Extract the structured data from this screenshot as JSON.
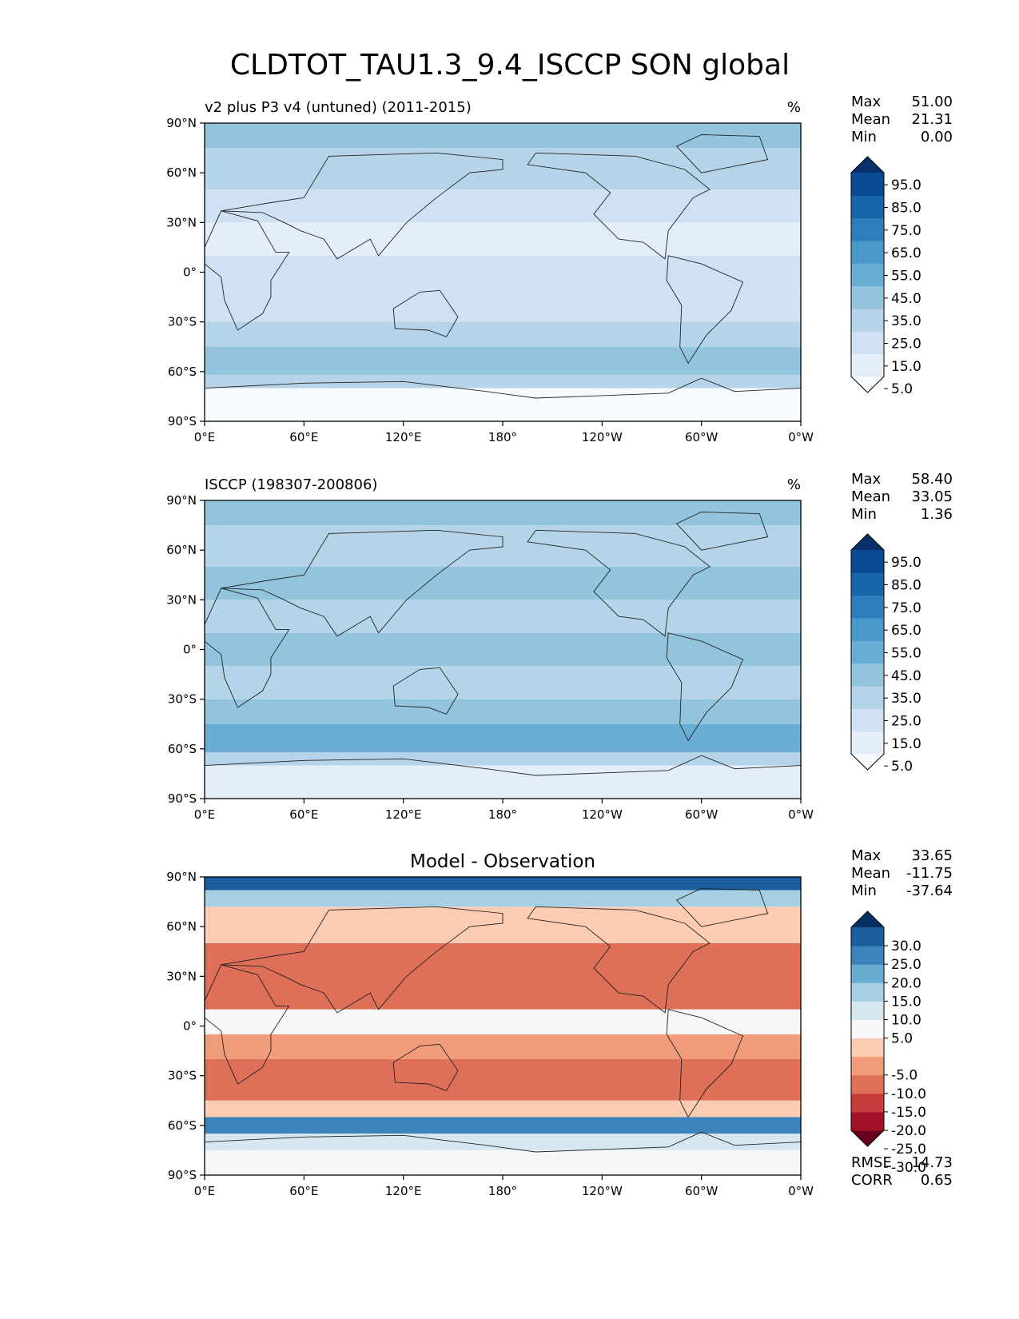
{
  "figure": {
    "title": "CLDTOT_TAU1.3_9.4_ISCCP SON global"
  },
  "axes": {
    "lat_ticks": [
      "90°N",
      "60°N",
      "30°N",
      "0°",
      "30°S",
      "60°S",
      "90°S"
    ],
    "lon_ticks": [
      "0°E",
      "60°E",
      "120°E",
      "180°",
      "120°W",
      "60°W",
      "0°W"
    ]
  },
  "stat_labels": {
    "max": "Max",
    "mean": "Mean",
    "min": "Min",
    "rmse": "RMSE",
    "corr": "CORR"
  },
  "chart_data": [
    {
      "type": "heatmap",
      "subtitle": "v2 plus P3 v4 (untuned) (2011-2015)",
      "units": "%",
      "stats": {
        "max": "51.00",
        "mean": "21.31",
        "min": "0.00"
      },
      "colorbar": {
        "ticks": [
          "95.0",
          "85.0",
          "75.0",
          "65.0",
          "55.0",
          "45.0",
          "35.0",
          "25.0",
          "15.0",
          "5.0"
        ],
        "colors": [
          "#f7fbff",
          "#e3eef9",
          "#cfe1f2",
          "#b5d4e9",
          "#93c4de",
          "#6aaed6",
          "#4a98c9",
          "#2e7ebc",
          "#1764ab",
          "#084a91",
          "#08306b"
        ]
      },
      "bands": [
        {
          "lat": [
            90,
            75
          ],
          "color": "#93c4de"
        },
        {
          "lat": [
            75,
            50
          ],
          "color": "#b5d4e9"
        },
        {
          "lat": [
            50,
            30
          ],
          "color": "#cfe1f2"
        },
        {
          "lat": [
            30,
            10
          ],
          "color": "#e3eef9"
        },
        {
          "lat": [
            10,
            -10
          ],
          "color": "#cfe1f2"
        },
        {
          "lat": [
            -10,
            -30
          ],
          "color": "#cfe1f2"
        },
        {
          "lat": [
            -30,
            -45
          ],
          "color": "#b5d4e9"
        },
        {
          "lat": [
            -45,
            -62
          ],
          "color": "#93c4de"
        },
        {
          "lat": [
            -62,
            -70
          ],
          "color": "#b5d4e9"
        },
        {
          "lat": [
            -70,
            -90
          ],
          "color": "#f7fbff"
        }
      ]
    },
    {
      "type": "heatmap",
      "subtitle": "ISCCP (198307-200806)",
      "units": "%",
      "stats": {
        "max": "58.40",
        "mean": "33.05",
        "min": "1.36"
      },
      "colorbar": {
        "ticks": [
          "95.0",
          "85.0",
          "75.0",
          "65.0",
          "55.0",
          "45.0",
          "35.0",
          "25.0",
          "15.0",
          "5.0"
        ],
        "colors": [
          "#f7fbff",
          "#e3eef9",
          "#cfe1f2",
          "#b5d4e9",
          "#93c4de",
          "#6aaed6",
          "#4a98c9",
          "#2e7ebc",
          "#1764ab",
          "#084a91",
          "#08306b"
        ]
      },
      "bands": [
        {
          "lat": [
            90,
            75
          ],
          "color": "#93c4de"
        },
        {
          "lat": [
            75,
            50
          ],
          "color": "#b5d4e9"
        },
        {
          "lat": [
            50,
            30
          ],
          "color": "#93c4de"
        },
        {
          "lat": [
            30,
            10
          ],
          "color": "#b5d4e9"
        },
        {
          "lat": [
            10,
            -10
          ],
          "color": "#93c4de"
        },
        {
          "lat": [
            -10,
            -30
          ],
          "color": "#b5d4e9"
        },
        {
          "lat": [
            -30,
            -45
          ],
          "color": "#93c4de"
        },
        {
          "lat": [
            -45,
            -62
          ],
          "color": "#6aaed6"
        },
        {
          "lat": [
            -62,
            -70
          ],
          "color": "#b5d4e9"
        },
        {
          "lat": [
            -70,
            -90
          ],
          "color": "#e3eef9"
        }
      ]
    },
    {
      "type": "heatmap",
      "subtitle": "Model - Observation",
      "units": "",
      "stats": {
        "max": "33.65",
        "mean": "-11.75",
        "min": "-37.64",
        "rmse": "14.73",
        "corr": "0.65"
      },
      "colorbar": {
        "ticks": [
          "30.0",
          "25.0",
          "20.0",
          "15.0",
          "10.0",
          "5.0",
          "-5.0",
          "-10.0",
          "-15.0",
          "-20.0",
          "-25.0",
          "-30.0"
        ],
        "colors": [
          "#67001f",
          "#a11228",
          "#c43c3c",
          "#de6f58",
          "#f09c7b",
          "#fbcbb2",
          "#f7f7f7",
          "#d6e7f1",
          "#a7cfe4",
          "#6aacd0",
          "#3a84bb",
          "#1a5e9d",
          "#053061"
        ]
      },
      "bands": [
        {
          "lat": [
            90,
            82
          ],
          "color": "#1a5e9d"
        },
        {
          "lat": [
            82,
            72
          ],
          "color": "#a7cfe4"
        },
        {
          "lat": [
            72,
            50
          ],
          "color": "#fbcbb2"
        },
        {
          "lat": [
            50,
            10
          ],
          "color": "#de6f58"
        },
        {
          "lat": [
            10,
            -5
          ],
          "color": "#f7f7f7"
        },
        {
          "lat": [
            -5,
            -20
          ],
          "color": "#f09c7b"
        },
        {
          "lat": [
            -20,
            -45
          ],
          "color": "#de6f58"
        },
        {
          "lat": [
            -45,
            -55
          ],
          "color": "#fbcbb2"
        },
        {
          "lat": [
            -55,
            -65
          ],
          "color": "#3a84bb"
        },
        {
          "lat": [
            -65,
            -75
          ],
          "color": "#d6e7f1"
        },
        {
          "lat": [
            -75,
            -90
          ],
          "color": "#f7f7f7"
        }
      ]
    }
  ]
}
